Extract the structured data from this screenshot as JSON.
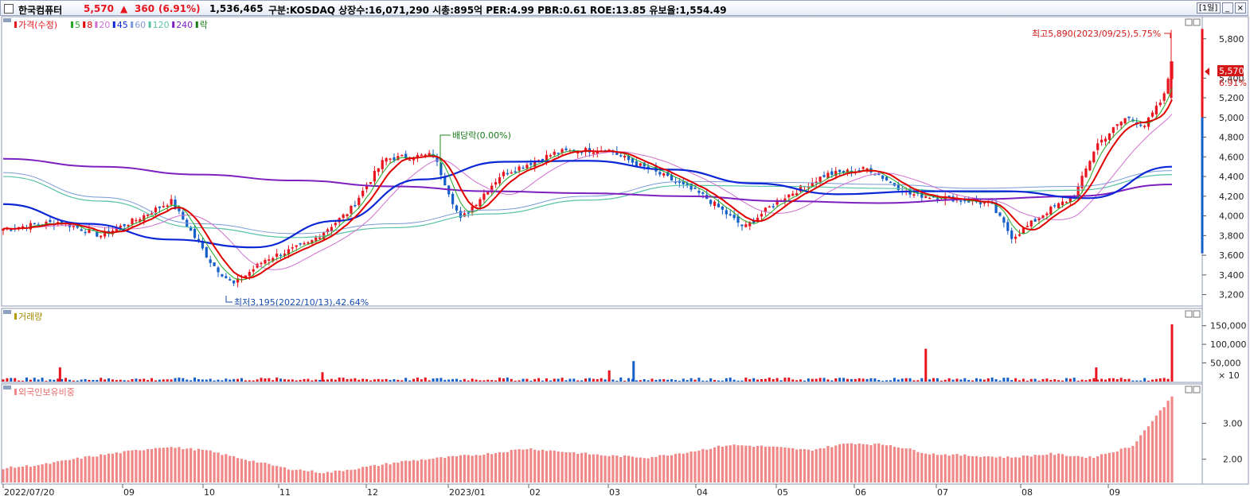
{
  "header": {
    "name": "한국컴퓨터",
    "price": "5,570",
    "arrow": "▲",
    "change": "360",
    "change_pct": "(6.91%)",
    "volume": "1,536,465",
    "info": "구분:KOSDAQ 상장수:16,071,290 시총:895억 PER:4.99 PBR:0.61 ROE:13.85 유보율:1,554.49",
    "period_button": "[1일]",
    "min_button": "_",
    "close_button": "×"
  },
  "colors": {
    "up": "#e8141e",
    "down": "#1560c8",
    "ma5": "#22aa22",
    "ma8": "#e00000",
    "ma20": "#d070d0",
    "ma45": "#0b27d6",
    "ma60": "#7a9ad6",
    "ma120": "#58c2a8",
    "ma240": "#7c20c0",
    "foreign": "#f08888"
  },
  "chart_data": [
    {
      "type": "candlestick",
      "panel": "price",
      "legend": [
        {
          "label": "가격(수정)",
          "color": "#e8141e"
        },
        {
          "label": "5",
          "color": "#22aa22"
        },
        {
          "label": "8",
          "color": "#e00000"
        },
        {
          "label": "20",
          "color": "#d070d0"
        },
        {
          "label": "45",
          "color": "#0b27d6"
        },
        {
          "label": "60",
          "color": "#7a9ad6"
        },
        {
          "label": "120",
          "color": "#58c2a8"
        },
        {
          "label": "240",
          "color": "#7c20c0"
        },
        {
          "label": "락",
          "color": "#1a7a1a"
        }
      ],
      "ylim": [
        3100,
        6000
      ],
      "yticks": [
        "5,800",
        "5,400",
        "5,200",
        "5,000",
        "4,800",
        "4,600",
        "4,400",
        "4,200",
        "4,000",
        "3,800",
        "3,600",
        "3,400",
        "3,200"
      ],
      "ytick_values": [
        5800,
        5400,
        5200,
        5000,
        4800,
        4600,
        4400,
        4200,
        4000,
        3800,
        3600,
        3400,
        3200
      ],
      "current_price_label": "5,570",
      "current_price_value": 5570,
      "current_pct_label": "6.91%",
      "annotations": {
        "high": "최고5,890(2023/09/25),5.75%",
        "low": "최저3,195(2022/10/13),42.64%",
        "dividend": "배당락(0.00%)"
      },
      "close_keypoints": [
        {
          "date": "2022/07/20",
          "close": 3870
        },
        {
          "date": "2022/08/10",
          "close": 3940
        },
        {
          "date": "2022/08/25",
          "close": 3800
        },
        {
          "date": "2022/09/07",
          "close": 3960
        },
        {
          "date": "2022/09/20",
          "close": 4150
        },
        {
          "date": "2022/09/26",
          "close": 3900
        },
        {
          "date": "2022/10/05",
          "close": 3520
        },
        {
          "date": "2022/10/13",
          "close": 3300
        },
        {
          "date": "2022/10/25",
          "close": 3560
        },
        {
          "date": "2022/11/10",
          "close": 3720
        },
        {
          "date": "2022/11/25",
          "close": 4050
        },
        {
          "date": "2022/12/08",
          "close": 4580
        },
        {
          "date": "2022/12/26",
          "close": 4620
        },
        {
          "date": "2023/01/05",
          "close": 3960
        },
        {
          "date": "2023/01/20",
          "close": 4420
        },
        {
          "date": "2023/02/10",
          "close": 4650
        },
        {
          "date": "2023/02/28",
          "close": 4680
        },
        {
          "date": "2023/03/10",
          "close": 4540
        },
        {
          "date": "2023/03/20",
          "close": 4420
        },
        {
          "date": "2023/04/05",
          "close": 4200
        },
        {
          "date": "2023/04/20",
          "close": 3880
        },
        {
          "date": "2023/05/02",
          "close": 4150
        },
        {
          "date": "2023/05/20",
          "close": 4420
        },
        {
          "date": "2023/06/05",
          "close": 4480
        },
        {
          "date": "2023/06/20",
          "close": 4220
        },
        {
          "date": "2023/07/05",
          "close": 4180
        },
        {
          "date": "2023/07/20",
          "close": 4120
        },
        {
          "date": "2023/07/28",
          "close": 3780
        },
        {
          "date": "2023/08/10",
          "close": 4050
        },
        {
          "date": "2023/08/20",
          "close": 4200
        },
        {
          "date": "2023/08/28",
          "close": 4720
        },
        {
          "date": "2023/09/08",
          "close": 5000
        },
        {
          "date": "2023/09/15",
          "close": 4920
        },
        {
          "date": "2023/09/22",
          "close": 5210
        },
        {
          "date": "2023/09/25",
          "close": 5570
        }
      ],
      "ma45_keypoints": [
        4120,
        3920,
        3760,
        3680,
        3950,
        4370,
        4550,
        4560,
        4470,
        4330,
        4220,
        4250,
        4250,
        4180,
        4500
      ],
      "ma240_keypoints": [
        4580,
        4500,
        4420,
        4360,
        4300,
        4250,
        4230,
        4200,
        4150,
        4130,
        4170,
        4200,
        4320
      ],
      "ma120_keypoints": [
        4400,
        4150,
        3880,
        3780,
        3880,
        4020,
        4160,
        4310,
        4300,
        4280,
        4240,
        4260,
        4420
      ]
    },
    {
      "type": "bar",
      "panel": "volume",
      "title": "거래량",
      "yticks": [
        "150,000",
        "100,000",
        "50,000"
      ],
      "ytick_values": [
        150000,
        100000,
        50000
      ],
      "unit_label": "× 10",
      "ylim": [
        0,
        175000
      ],
      "spikes": [
        {
          "date": "2022/08/10",
          "value": 38000
        },
        {
          "date": "2022/11/15",
          "value": 25000
        },
        {
          "date": "2023/03/01",
          "value": 30000
        },
        {
          "date": "2023/03/10",
          "value": 55000
        },
        {
          "date": "2023/06/26",
          "value": 88000
        },
        {
          "date": "2023/08/28",
          "value": 38000
        },
        {
          "date": "2023/09/25",
          "value": 153647
        }
      ]
    },
    {
      "type": "bar",
      "panel": "foreign",
      "title": "외국인보유비중",
      "yticks": [
        "3.00",
        "2.00"
      ],
      "ytick_values": [
        3.0,
        2.0
      ],
      "ylim": [
        1.35,
        3.9
      ],
      "keypoints": [
        1.75,
        1.85,
        2.05,
        2.2,
        2.35,
        2.25,
        2.0,
        1.75,
        1.62,
        1.78,
        1.95,
        2.05,
        2.15,
        2.3,
        2.2,
        2.1,
        2.05,
        2.2,
        2.4,
        2.35,
        2.25,
        2.45,
        2.4,
        2.15,
        2.1,
        2.05,
        2.15,
        2.05,
        2.35,
        3.75
      ]
    }
  ],
  "x_axis": {
    "labels": [
      "2022/07/20",
      "09",
      "10",
      "11",
      "12",
      "2023/01",
      "02",
      "03",
      "04",
      "05",
      "06",
      "07",
      "08",
      "09"
    ]
  }
}
